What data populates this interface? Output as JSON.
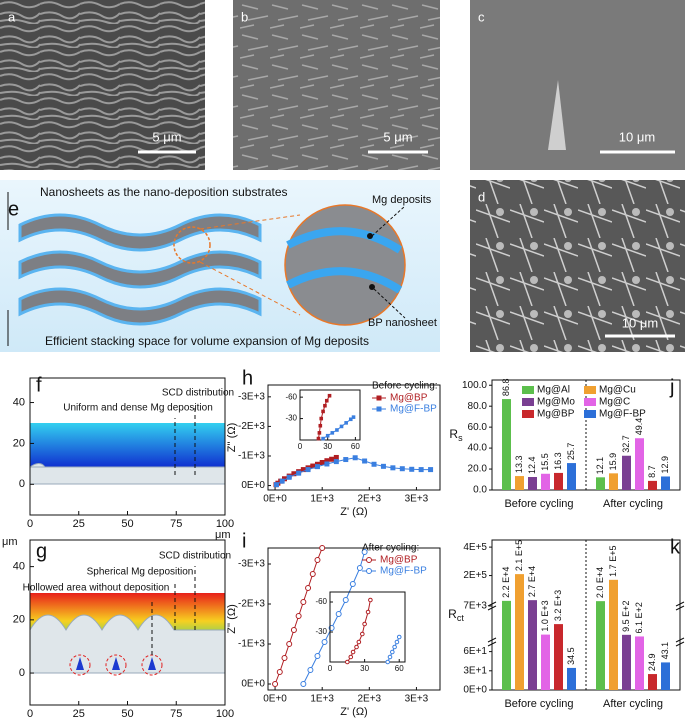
{
  "panels": {
    "a": {
      "label": "a",
      "scale_bar": "5 μm"
    },
    "b": {
      "label": "b",
      "scale_bar": "5 μm"
    },
    "c": {
      "label": "c",
      "scale_bar": "10 μm"
    },
    "d": {
      "label": "d",
      "scale_bar": "10 μm"
    },
    "e": {
      "label": "e",
      "top_text": "Nanosheets as the nano-deposition substrates",
      "bottom_text": "Efficient stacking space for volume expansion of Mg deposits",
      "callouts": [
        "Mg deposits",
        "BP nanosheet"
      ]
    },
    "f": {
      "label": "f",
      "unit_x": "μm",
      "xlim": [
        0,
        100
      ],
      "ylim": [
        -15,
        52
      ],
      "xticks": [
        0,
        25,
        50,
        75,
        100
      ],
      "yticks": [
        0,
        20,
        40
      ],
      "annotations": [
        "SCD distribution",
        "Uniform and dense Mg deposition"
      ]
    },
    "g": {
      "label": "g",
      "unit_x": "μm",
      "unit_y": "μm",
      "xlim": [
        0,
        100
      ],
      "ylim": [
        -12,
        50
      ],
      "xticks": [
        0,
        25,
        50,
        75,
        100
      ],
      "yticks": [
        0,
        20,
        40
      ],
      "annotations": [
        "SCD distribution",
        "Spherical Mg deposition",
        "Hollowed area  without deposition"
      ]
    }
  },
  "chart_data": [
    {
      "type": "line",
      "label": "h",
      "xlabel": "Z' (Ω)",
      "ylabel": "Z'' (Ω)",
      "xlim": [
        -150,
        3500
      ],
      "ylim": [
        150,
        -3400
      ],
      "xticks": [
        {
          "value": 0,
          "label": "0E+0"
        },
        {
          "value": 1000,
          "label": "1E+3"
        },
        {
          "value": 2000,
          "label": "2E+3"
        },
        {
          "value": 3000,
          "label": "3E+3"
        }
      ],
      "yticks": [
        {
          "value": 0,
          "label": "0E+0"
        },
        {
          "value": -1000,
          "label": "-1E+3"
        },
        {
          "value": -2000,
          "label": "-2E+3"
        },
        {
          "value": -3000,
          "label": "-3E+3"
        }
      ],
      "legend_title": "Before cycling:",
      "series": [
        {
          "name": "Mg@BP",
          "color": "#b01e22",
          "marker": "square",
          "x": [
            20,
            60,
            120,
            200,
            300,
            400,
            500,
            600,
            700,
            800,
            900,
            1000,
            1100,
            1200,
            1300
          ],
          "values": [
            -30,
            -80,
            -150,
            -230,
            -320,
            -400,
            -470,
            -540,
            -600,
            -660,
            -720,
            -780,
            -840,
            -890,
            -950
          ]
        },
        {
          "name": "Mg@F-BP",
          "color": "#3a7fe0",
          "marker": "square",
          "x": [
            30,
            150,
            300,
            500,
            700,
            900,
            1100,
            1300,
            1500,
            1700,
            1900,
            2100,
            2300,
            2500,
            2700,
            2900,
            3100,
            3300
          ],
          "values": [
            -30,
            -150,
            -280,
            -420,
            -540,
            -640,
            -730,
            -810,
            -880,
            -940,
            -830,
            -720,
            -650,
            -600,
            -570,
            -550,
            -540,
            -540
          ]
        }
      ],
      "inset": {
        "xlim": [
          0,
          65
        ],
        "ylim": [
          0,
          -70
        ],
        "xticks": [
          0,
          30,
          60
        ],
        "yticks": [
          -30,
          -60
        ],
        "series": [
          {
            "color": "#b01e22",
            "marker": "square",
            "x": [
              20,
              21,
              22,
              23,
              25,
              27,
              29,
              32
            ],
            "values": [
              -2,
              -10,
              -20,
              -30,
              -40,
              -48,
              -55,
              -62
            ]
          },
          {
            "color": "#3a7fe0",
            "marker": "square",
            "x": [
              25,
              30,
              35,
              40,
              45,
              50,
              55,
              58
            ],
            "values": [
              -2,
              -6,
              -10,
              -14,
              -19,
              -24,
              -29,
              -32
            ]
          }
        ]
      }
    },
    {
      "type": "line",
      "label": "i",
      "xlabel": "Z' (Ω)",
      "ylabel": "Z'' (Ω)",
      "xlim": [
        -150,
        3500
      ],
      "ylim": [
        150,
        -3400
      ],
      "xticks": [
        {
          "value": 0,
          "label": "0E+0"
        },
        {
          "value": 1000,
          "label": "1E+3"
        },
        {
          "value": 2000,
          "label": "2E+3"
        },
        {
          "value": 3000,
          "label": "3E+3"
        }
      ],
      "yticks": [
        {
          "value": 0,
          "label": "0E+0"
        },
        {
          "value": -1000,
          "label": "-1E+3"
        },
        {
          "value": -2000,
          "label": "-2E+3"
        },
        {
          "value": -3000,
          "label": "-3E+3"
        }
      ],
      "legend_title": "After cycling:",
      "series": [
        {
          "name": "Mg@BP",
          "color": "#b01e22",
          "marker": "circle",
          "x": [
            0,
            100,
            200,
            300,
            400,
            500,
            600,
            700,
            800,
            900,
            1000
          ],
          "values": [
            0,
            -300,
            -650,
            -1000,
            -1350,
            -1700,
            -2050,
            -2400,
            -2750,
            -3100,
            -3400
          ]
        },
        {
          "name": "Mg@F-BP",
          "color": "#3a7fe0",
          "marker": "circle",
          "x": [
            600,
            750,
            900,
            1050,
            1200,
            1350,
            1500,
            1650,
            1800,
            1900
          ],
          "values": [
            0,
            -350,
            -700,
            -1050,
            -1400,
            -1750,
            -2100,
            -2500,
            -2900,
            -3300
          ]
        }
      ],
      "inset": {
        "xlim": [
          0,
          65
        ],
        "ylim": [
          0,
          -70
        ],
        "xticks": [
          0,
          30,
          60
        ],
        "yticks": [
          -30,
          -60
        ],
        "series": [
          {
            "color": "#b01e22",
            "marker": "circle",
            "x": [
              15,
              18,
              20,
              23,
              25,
              28,
              30,
              33,
              35
            ],
            "values": [
              0,
              -5,
              -10,
              -15,
              -20,
              -28,
              -38,
              -50,
              -62
            ]
          },
          {
            "color": "#3a7fe0",
            "marker": "circle",
            "x": [
              50,
              52,
              54,
              56,
              58,
              60
            ],
            "values": [
              0,
              -5,
              -10,
              -15,
              -20,
              -25
            ]
          }
        ]
      }
    },
    {
      "type": "bar",
      "label": "j",
      "ylabel": "R",
      "ylabel_subscript": "s",
      "categories": [
        "Before cycling",
        "After cycling"
      ],
      "ylim": [
        0,
        105
      ],
      "yticks": [
        {
          "value": 0,
          "label": "0.0"
        },
        {
          "value": 20,
          "label": "20.0"
        },
        {
          "value": 40,
          "label": "40.0"
        },
        {
          "value": 60,
          "label": "60.0"
        },
        {
          "value": 80,
          "label": "80.0"
        },
        {
          "value": 100,
          "label": "100.0"
        }
      ],
      "series": [
        {
          "name": "Mg@Al",
          "color": "#5cbf4c",
          "values": [
            86.8,
            12.1
          ]
        },
        {
          "name": "Mg@Cu",
          "color": "#f0a030",
          "values": [
            13.3,
            15.9
          ]
        },
        {
          "name": "Mg@Mo",
          "color": "#7a3f92",
          "values": [
            12.4,
            32.7
          ]
        },
        {
          "name": "Mg@C",
          "color": "#e264e6",
          "values": [
            15.5,
            49.4
          ]
        },
        {
          "name": "Mg@BP",
          "color": "#c8282c",
          "values": [
            16.3,
            8.7
          ]
        },
        {
          "name": "Mg@F-BP",
          "color": "#2c6fd8",
          "values": [
            25.7,
            12.9
          ]
        }
      ]
    },
    {
      "type": "broken-bar",
      "label": "k",
      "ylabel": "R",
      "ylabel_subscript": "ct",
      "categories": [
        "Before cycling",
        "After cycling"
      ],
      "ylim_segments": [
        [
          0,
          75
        ],
        [
          75,
          7000
        ],
        [
          7000,
          450000
        ]
      ],
      "yticks": [
        {
          "value": 0,
          "label": "0E+0"
        },
        {
          "value": 30,
          "label": "3E+1"
        },
        {
          "value": 60,
          "label": "6E+1"
        },
        {
          "value": 7000,
          "label": "7E+3"
        },
        {
          "value": 200000,
          "label": "2E+5"
        },
        {
          "value": 400000,
          "label": "4E+5"
        }
      ],
      "series": [
        {
          "name": "Mg@Al",
          "color": "#5cbf4c",
          "values": [
            22000,
            20000
          ],
          "value_labels": [
            "2.2 E+4",
            "2.0 E+4"
          ]
        },
        {
          "name": "Mg@Cu",
          "color": "#f0a030",
          "values": [
            210000,
            170000
          ],
          "value_labels": [
            "2.1 E+5",
            "1.7 E+5"
          ]
        },
        {
          "name": "Mg@Mo",
          "color": "#7a3f92",
          "values": [
            27000,
            950
          ],
          "value_labels": [
            "2.7 E+4",
            "9.5 E+2"
          ]
        },
        {
          "name": "Mg@C",
          "color": "#e264e6",
          "values": [
            1000,
            610
          ],
          "value_labels": [
            "1.0 E+3",
            "6.1 E+2"
          ]
        },
        {
          "name": "Mg@BP",
          "color": "#c8282c",
          "values": [
            3200,
            24.9
          ],
          "value_labels": [
            "3.2 E+3",
            "24.9"
          ]
        },
        {
          "name": "Mg@F-BP",
          "color": "#2c6fd8",
          "values": [
            34.5,
            43.1
          ],
          "value_labels": [
            "34.5",
            "43.1"
          ]
        }
      ]
    }
  ]
}
